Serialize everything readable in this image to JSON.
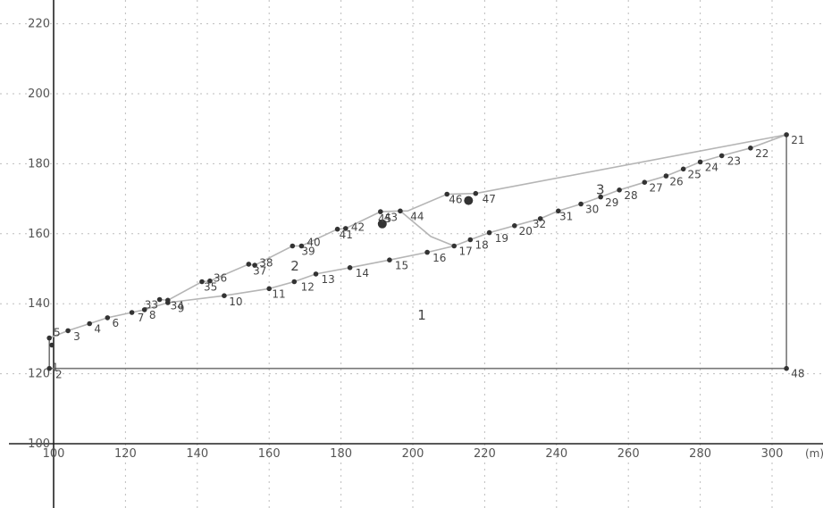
{
  "chart_data": {
    "type": "scatter",
    "title": "",
    "xlabel": "",
    "ylabel": "",
    "x_unit": "(m)",
    "xlim": [
      100,
      310
    ],
    "ylim": [
      100,
      222
    ],
    "x_ticks": [
      {
        "value": 100,
        "label": "100"
      },
      {
        "value": 120,
        "label": "120"
      },
      {
        "value": 140,
        "label": "140"
      },
      {
        "value": 160,
        "label": "160"
      },
      {
        "value": 180,
        "label": "180"
      },
      {
        "value": 200,
        "label": "200"
      },
      {
        "value": 220,
        "label": "220"
      },
      {
        "value": 240,
        "label": "240"
      },
      {
        "value": 260,
        "label": "260"
      },
      {
        "value": 280,
        "label": "280"
      },
      {
        "value": 300,
        "label": "300"
      }
    ],
    "y_ticks": [
      {
        "value": 100,
        "label": "100"
      },
      {
        "value": 120,
        "label": "120"
      },
      {
        "value": 140,
        "label": "140"
      },
      {
        "value": 160,
        "label": "160"
      },
      {
        "value": 180,
        "label": "180"
      },
      {
        "value": 200,
        "label": "200"
      },
      {
        "value": 220,
        "label": "220"
      }
    ],
    "grid": true,
    "points": [
      {
        "id": "1",
        "x": 98.8,
        "y": 121.5
      },
      {
        "id": "2",
        "x": 99.5,
        "y": 128.2
      },
      {
        "id": "3",
        "x": 104.0,
        "y": 132.3
      },
      {
        "id": "4",
        "x": 110.0,
        "y": 134.3
      },
      {
        "id": "5",
        "x": 98.8,
        "y": 130.2
      },
      {
        "id": "6",
        "x": 115.0,
        "y": 136.0
      },
      {
        "id": "7",
        "x": 121.8,
        "y": 137.5
      },
      {
        "id": "8",
        "x": 125.3,
        "y": 138.3
      },
      {
        "id": "9",
        "x": 131.8,
        "y": 140.3
      },
      {
        "id": "10",
        "x": 147.5,
        "y": 142.3
      },
      {
        "id": "11",
        "x": 160.0,
        "y": 144.3
      },
      {
        "id": "12",
        "x": 167.0,
        "y": 146.3
      },
      {
        "id": "13",
        "x": 173.0,
        "y": 148.5
      },
      {
        "id": "14",
        "x": 182.5,
        "y": 150.3
      },
      {
        "id": "15",
        "x": 193.5,
        "y": 152.5
      },
      {
        "id": "16",
        "x": 204.0,
        "y": 154.7
      },
      {
        "id": "17",
        "x": 211.5,
        "y": 156.5
      },
      {
        "id": "18",
        "x": 216.0,
        "y": 158.3
      },
      {
        "id": "19",
        "x": 221.3,
        "y": 160.3
      },
      {
        "id": "20",
        "x": 228.3,
        "y": 162.3
      },
      {
        "id": "21",
        "x": 304.0,
        "y": 188.3
      },
      {
        "id": "22",
        "x": 294.0,
        "y": 184.5
      },
      {
        "id": "23",
        "x": 286.0,
        "y": 182.3
      },
      {
        "id": "24",
        "x": 280.0,
        "y": 180.5
      },
      {
        "id": "25",
        "x": 275.3,
        "y": 178.5
      },
      {
        "id": "26",
        "x": 270.5,
        "y": 176.5
      },
      {
        "id": "27",
        "x": 264.5,
        "y": 174.7
      },
      {
        "id": "28",
        "x": 257.5,
        "y": 172.5
      },
      {
        "id": "29",
        "x": 252.3,
        "y": 170.5
      },
      {
        "id": "30",
        "x": 246.8,
        "y": 168.5
      },
      {
        "id": "31",
        "x": 240.5,
        "y": 166.5
      },
      {
        "id": "32",
        "x": 235.5,
        "y": 164.3
      },
      {
        "id": "33",
        "x": 129.5,
        "y": 141.2
      },
      {
        "id": "34",
        "x": 131.8,
        "y": 141.0
      },
      {
        "id": "35",
        "x": 141.3,
        "y": 146.3
      },
      {
        "id": "36",
        "x": 143.5,
        "y": 146.5
      },
      {
        "id": "37",
        "x": 156.0,
        "y": 151.0
      },
      {
        "id": "38",
        "x": 154.3,
        "y": 151.3
      },
      {
        "id": "39",
        "x": 169.0,
        "y": 156.5
      },
      {
        "id": "40",
        "x": 166.5,
        "y": 156.5
      },
      {
        "id": "41",
        "x": 179.0,
        "y": 161.3
      },
      {
        "id": "42",
        "x": 181.3,
        "y": 161.5
      },
      {
        "id": "43",
        "x": 191.0,
        "y": 166.3
      },
      {
        "id": "44",
        "x": 196.5,
        "y": 166.5
      },
      {
        "id": "45",
        "x": 191.5,
        "y": 163.0
      },
      {
        "id": "46",
        "x": 209.5,
        "y": 171.3
      },
      {
        "id": "47",
        "x": 217.5,
        "y": 171.5
      },
      {
        "id": "48",
        "x": 304.0,
        "y": 121.5
      }
    ],
    "large_points": [
      {
        "x": 191.5,
        "y": 162.8
      },
      {
        "x": 215.5,
        "y": 169.5
      }
    ],
    "point_labels": [
      {
        "text": "1",
        "x": 99.5,
        "y": 120.8
      },
      {
        "text": "2",
        "x": 100.5,
        "y": 118.8
      },
      {
        "text": "3",
        "x": 105.5,
        "y": 129.6
      },
      {
        "text": "4",
        "x": 111.3,
        "y": 131.7
      },
      {
        "text": "5",
        "x": 100.0,
        "y": 130.8
      },
      {
        "text": "6",
        "x": 116.3,
        "y": 133.4
      },
      {
        "text": "7",
        "x": 123.3,
        "y": 134.9
      },
      {
        "text": "8",
        "x": 126.6,
        "y": 135.7
      },
      {
        "text": "9",
        "x": 134.5,
        "y": 137.6
      },
      {
        "text": "10",
        "x": 148.8,
        "y": 139.6
      },
      {
        "text": "11",
        "x": 160.8,
        "y": 141.7
      },
      {
        "text": "12",
        "x": 168.8,
        "y": 143.7
      },
      {
        "text": "13",
        "x": 174.5,
        "y": 145.9
      },
      {
        "text": "14",
        "x": 184.0,
        "y": 147.7
      },
      {
        "text": "15",
        "x": 195.0,
        "y": 149.9
      },
      {
        "text": "16",
        "x": 205.5,
        "y": 152.1
      },
      {
        "text": "17",
        "x": 212.8,
        "y": 153.9
      },
      {
        "text": "18",
        "x": 217.3,
        "y": 155.7
      },
      {
        "text": "19",
        "x": 222.8,
        "y": 157.7
      },
      {
        "text": "20",
        "x": 229.5,
        "y": 159.7
      },
      {
        "text": "21",
        "x": 305.3,
        "y": 185.7
      },
      {
        "text": "22",
        "x": 295.3,
        "y": 181.9
      },
      {
        "text": "23",
        "x": 287.5,
        "y": 179.7
      },
      {
        "text": "24",
        "x": 281.3,
        "y": 177.9
      },
      {
        "text": "25",
        "x": 276.5,
        "y": 175.9
      },
      {
        "text": "26",
        "x": 271.5,
        "y": 173.9
      },
      {
        "text": "27",
        "x": 265.8,
        "y": 172.1
      },
      {
        "text": "28",
        "x": 258.8,
        "y": 169.9
      },
      {
        "text": "29",
        "x": 253.5,
        "y": 167.9
      },
      {
        "text": "30",
        "x": 248.0,
        "y": 165.9
      },
      {
        "text": "31",
        "x": 240.8,
        "y": 163.9
      },
      {
        "text": "32",
        "x": 233.3,
        "y": 161.7
      },
      {
        "text": "33",
        "x": 125.3,
        "y": 138.6
      },
      {
        "text": "34",
        "x": 132.5,
        "y": 138.4
      },
      {
        "text": "35",
        "x": 141.8,
        "y": 143.7
      },
      {
        "text": "36",
        "x": 144.5,
        "y": 146.3
      },
      {
        "text": "37",
        "x": 155.5,
        "y": 148.4
      },
      {
        "text": "38",
        "x": 157.3,
        "y": 150.7
      },
      {
        "text": "39",
        "x": 169.0,
        "y": 153.9
      },
      {
        "text": "40",
        "x": 170.5,
        "y": 156.5
      },
      {
        "text": "41",
        "x": 179.5,
        "y": 158.7
      },
      {
        "text": "42",
        "x": 182.8,
        "y": 160.9
      },
      {
        "text": "43",
        "x": 192.0,
        "y": 163.7
      },
      {
        "text": "44",
        "x": 199.3,
        "y": 163.9
      },
      {
        "text": "45",
        "x": 190.3,
        "y": 163.3
      },
      {
        "text": "46",
        "x": 210.0,
        "y": 168.7
      },
      {
        "text": "47",
        "x": 219.3,
        "y": 168.9
      },
      {
        "text": "48",
        "x": 305.3,
        "y": 119.0
      }
    ],
    "region_labels": [
      {
        "text": "1",
        "x": 201.3,
        "y": 135.4
      },
      {
        "text": "2",
        "x": 166.0,
        "y": 149.5
      },
      {
        "text": "3",
        "x": 251.0,
        "y": 171.3
      }
    ],
    "polylines": [
      {
        "style": "light",
        "points": [
          [
            98.8,
            130.2
          ],
          [
            104.0,
            132.3
          ],
          [
            110.0,
            134.3
          ],
          [
            115.0,
            136.0
          ],
          [
            121.8,
            137.5
          ],
          [
            125.3,
            138.3
          ],
          [
            131.8,
            140.3
          ],
          [
            147.5,
            142.3
          ],
          [
            160.0,
            144.3
          ],
          [
            167.0,
            146.3
          ],
          [
            173.0,
            148.5
          ],
          [
            182.5,
            150.3
          ],
          [
            193.5,
            152.5
          ],
          [
            204.0,
            154.7
          ],
          [
            211.5,
            156.5
          ],
          [
            216.0,
            158.3
          ],
          [
            221.3,
            160.3
          ],
          [
            228.3,
            162.3
          ],
          [
            235.5,
            164.3
          ],
          [
            240.5,
            166.5
          ],
          [
            246.8,
            168.5
          ],
          [
            252.3,
            170.5
          ],
          [
            257.5,
            172.5
          ],
          [
            264.5,
            174.7
          ],
          [
            270.5,
            176.5
          ],
          [
            275.3,
            178.5
          ],
          [
            280.0,
            180.5
          ],
          [
            286.0,
            182.3
          ],
          [
            294.0,
            184.5
          ],
          [
            304.0,
            188.3
          ]
        ]
      },
      {
        "style": "light",
        "points": [
          [
            129.5,
            141.2
          ],
          [
            131.8,
            141.0
          ],
          [
            141.3,
            146.3
          ],
          [
            143.5,
            146.5
          ],
          [
            154.3,
            151.3
          ],
          [
            156.0,
            151.0
          ],
          [
            166.5,
            156.5
          ],
          [
            169.0,
            156.5
          ],
          [
            179.0,
            161.3
          ],
          [
            181.3,
            161.5
          ],
          [
            191.0,
            166.3
          ],
          [
            196.5,
            166.5
          ],
          [
            198.5,
            166.5
          ],
          [
            209.5,
            171.3
          ],
          [
            217.5,
            171.5
          ],
          [
            304.0,
            188.3
          ]
        ]
      },
      {
        "style": "light",
        "points": [
          [
            196.5,
            166.5
          ],
          [
            205.0,
            159.2
          ],
          [
            211.5,
            156.5
          ]
        ]
      },
      {
        "style": "dark",
        "points": [
          [
            98.8,
            121.5
          ],
          [
            304.0,
            121.5
          ],
          [
            304.0,
            188.3
          ]
        ]
      },
      {
        "style": "dark",
        "points": [
          [
            98.8,
            121.5
          ],
          [
            98.8,
            130.2
          ]
        ]
      }
    ]
  }
}
